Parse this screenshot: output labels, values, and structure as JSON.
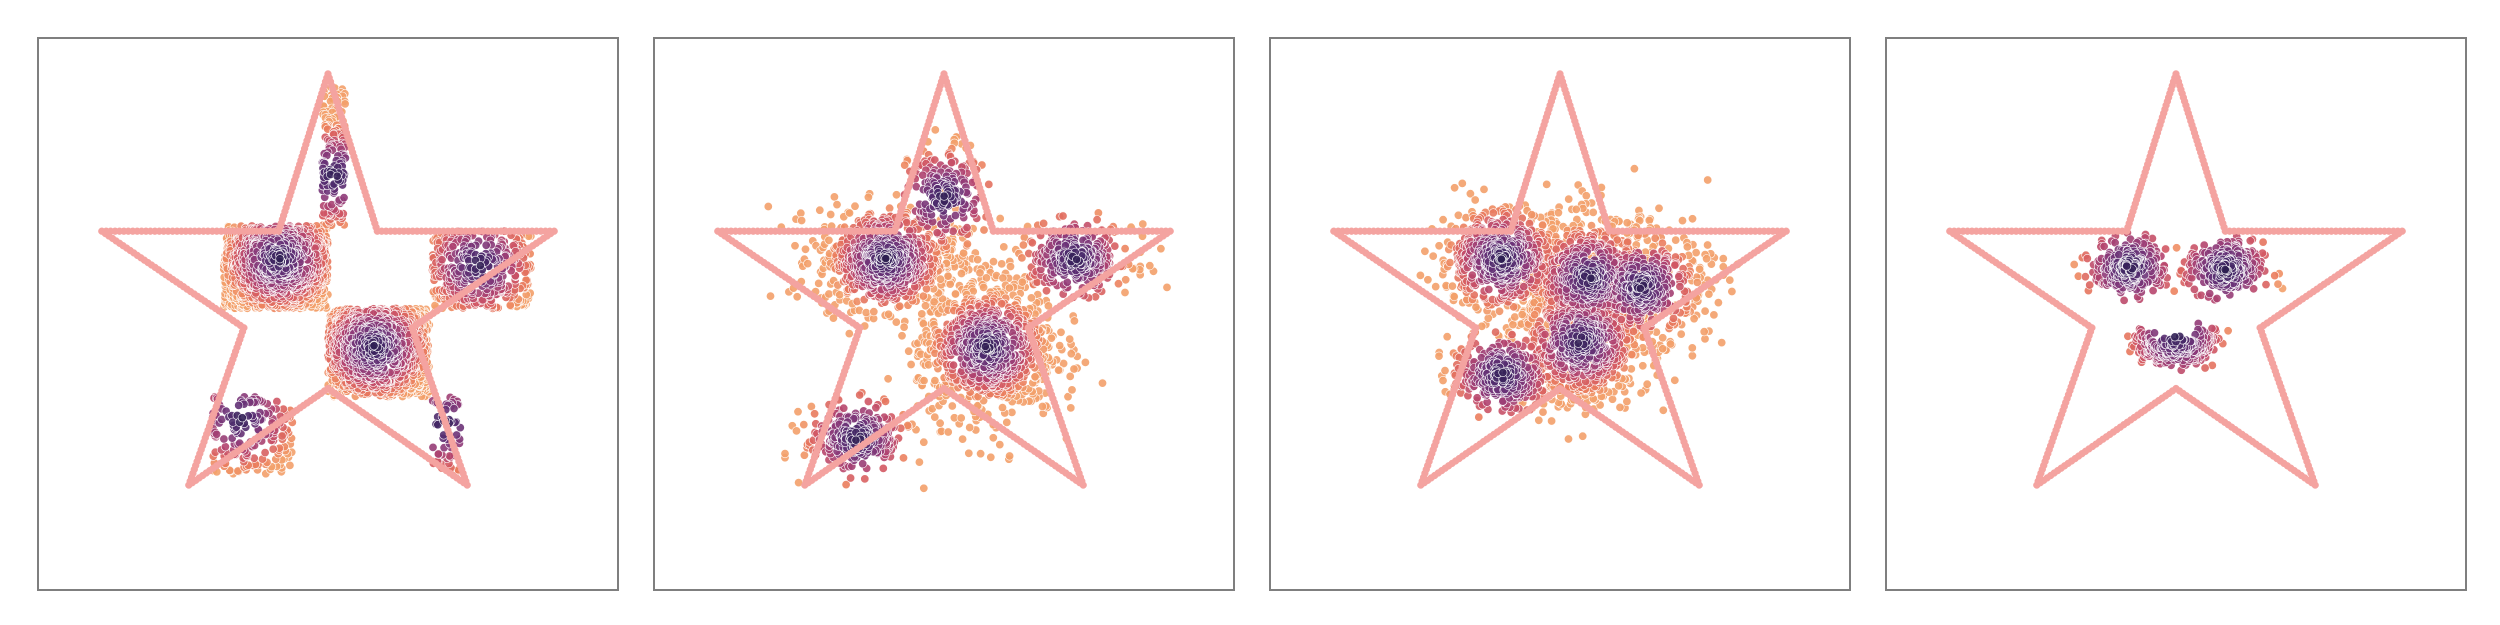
{
  "colors": {
    "background": "#ffffff",
    "frame": "#7f7f7f",
    "star_outline": "#f4a3a0",
    "point_edge": "#ffffff",
    "colormap": [
      "#2c1e50",
      "#4a2a6b",
      "#6b3378",
      "#8e3b79",
      "#b3446f",
      "#d45a63",
      "#ea7c5d",
      "#f3a06a"
    ]
  },
  "chart_data": [
    {
      "type": "scatter",
      "title": "",
      "xlabel": "",
      "ylabel": "",
      "xlim": [
        -1,
        1
      ],
      "ylim": [
        -1,
        1
      ],
      "grid": false,
      "ticks": false,
      "legend": null,
      "star_outline": {
        "vertices": [
          [
            0,
            0.87
          ],
          [
            0.17,
            0.3
          ],
          [
            0.78,
            0.3
          ],
          [
            0.29,
            -0.05
          ],
          [
            0.48,
            -0.62
          ],
          [
            0,
            -0.27
          ],
          [
            -0.48,
            -0.62
          ],
          [
            -0.29,
            -0.05
          ],
          [
            -0.78,
            0.3
          ],
          [
            -0.17,
            0.3
          ]
        ],
        "pattern": "outline"
      },
      "density_clusters": [
        {
          "region": [
            -0.36,
            0.02,
            0.0,
            0.32
          ],
          "kind": "rect",
          "weight": 900,
          "center": [
            -0.17,
            0.2
          ]
        },
        {
          "region": [
            0.0,
            -0.3,
            0.35,
            0.02
          ],
          "kind": "rect",
          "weight": 950,
          "center": [
            0.16,
            -0.12
          ]
        },
        {
          "region": [
            0.36,
            0.02,
            0.7,
            0.3
          ],
          "kind": "rect",
          "weight": 380,
          "center": [
            0.52,
            0.18
          ]
        },
        {
          "region": [
            -0.02,
            0.32,
            0.06,
            0.82
          ],
          "kind": "rect",
          "weight": 170,
          "center": [
            0.02,
            0.5
          ]
        },
        {
          "region": [
            -0.4,
            -0.58,
            -0.12,
            -0.3
          ],
          "kind": "rect",
          "weight": 170,
          "center": [
            -0.3,
            -0.38
          ]
        },
        {
          "region": [
            0.36,
            -0.58,
            0.46,
            -0.3
          ],
          "kind": "rect",
          "weight": 60,
          "center": [
            0.4,
            -0.4
          ]
        }
      ]
    },
    {
      "type": "scatter",
      "title": "",
      "xlabel": "",
      "ylabel": "",
      "xlim": [
        -1,
        1
      ],
      "ylim": [
        -1,
        1
      ],
      "grid": false,
      "ticks": false,
      "legend": null,
      "star_outline": {
        "vertices": [
          [
            0,
            0.87
          ],
          [
            0.17,
            0.3
          ],
          [
            0.78,
            0.3
          ],
          [
            0.29,
            -0.05
          ],
          [
            0.48,
            -0.62
          ],
          [
            0,
            -0.27
          ],
          [
            -0.48,
            -0.62
          ],
          [
            -0.29,
            -0.05
          ],
          [
            -0.78,
            0.3
          ],
          [
            -0.17,
            0.3
          ]
        ],
        "pattern": "outline"
      },
      "density_clusters": [
        {
          "center": [
            -0.2,
            0.2
          ],
          "spread": [
            0.12,
            0.09
          ],
          "kind": "blob",
          "weight": 700
        },
        {
          "center": [
            0.15,
            -0.12
          ],
          "spread": [
            0.12,
            0.13
          ],
          "kind": "blob",
          "weight": 850
        },
        {
          "center": [
            0.45,
            0.2
          ],
          "spread": [
            0.1,
            0.06
          ],
          "kind": "blob",
          "weight": 300
        },
        {
          "center": [
            -0.3,
            -0.45
          ],
          "spread": [
            0.09,
            0.06
          ],
          "kind": "blob",
          "weight": 260
        },
        {
          "center": [
            0.0,
            0.42
          ],
          "spread": [
            0.06,
            0.1
          ],
          "kind": "blob",
          "weight": 200
        }
      ]
    },
    {
      "type": "scatter",
      "title": "",
      "xlabel": "",
      "ylabel": "",
      "xlim": [
        -1,
        1
      ],
      "ylim": [
        -1,
        1
      ],
      "grid": false,
      "ticks": false,
      "legend": null,
      "star_outline": {
        "vertices": [
          [
            0,
            0.87
          ],
          [
            0.17,
            0.3
          ],
          [
            0.78,
            0.3
          ],
          [
            0.29,
            -0.05
          ],
          [
            0.48,
            -0.62
          ],
          [
            0,
            -0.27
          ],
          [
            -0.48,
            -0.62
          ],
          [
            -0.29,
            -0.05
          ],
          [
            -0.78,
            0.3
          ],
          [
            -0.17,
            0.3
          ]
        ],
        "pattern": "outline"
      },
      "density_clusters": [
        {
          "center": [
            -0.2,
            0.2
          ],
          "spread": [
            0.11,
            0.09
          ],
          "kind": "blob",
          "weight": 600
        },
        {
          "center": [
            0.1,
            0.13
          ],
          "spread": [
            0.13,
            0.12
          ],
          "kind": "blob",
          "weight": 650
        },
        {
          "center": [
            0.07,
            -0.1
          ],
          "spread": [
            0.12,
            0.12
          ],
          "kind": "blob",
          "weight": 700
        },
        {
          "center": [
            0.28,
            0.1
          ],
          "spread": [
            0.12,
            0.09
          ],
          "kind": "blob",
          "weight": 450
        },
        {
          "center": [
            -0.2,
            -0.22
          ],
          "spread": [
            0.09,
            0.06
          ],
          "kind": "blob",
          "weight": 300
        }
      ]
    },
    {
      "type": "scatter",
      "title": "",
      "xlabel": "",
      "ylabel": "",
      "xlim": [
        -1,
        1
      ],
      "ylim": [
        -1,
        1
      ],
      "grid": false,
      "ticks": false,
      "legend": null,
      "star_outline": {
        "vertices": [
          [
            0,
            0.87
          ],
          [
            0.17,
            0.3
          ],
          [
            0.78,
            0.3
          ],
          [
            0.29,
            -0.05
          ],
          [
            0.48,
            -0.62
          ],
          [
            0,
            -0.27
          ],
          [
            -0.48,
            -0.62
          ],
          [
            -0.29,
            -0.05
          ],
          [
            -0.78,
            0.3
          ],
          [
            -0.17,
            0.3
          ]
        ],
        "pattern": "outline"
      },
      "density_clusters": [
        {
          "center": [
            -0.16,
            0.17
          ],
          "spread": [
            0.065,
            0.05
          ],
          "kind": "blob",
          "weight": 260
        },
        {
          "center": [
            0.17,
            0.16
          ],
          "spread": [
            0.065,
            0.05
          ],
          "kind": "blob",
          "weight": 260
        },
        {
          "center": [
            0.0,
            -0.08
          ],
          "spread": [
            0.04,
            0.025
          ],
          "kind": "smile",
          "weight": 260
        }
      ]
    }
  ]
}
